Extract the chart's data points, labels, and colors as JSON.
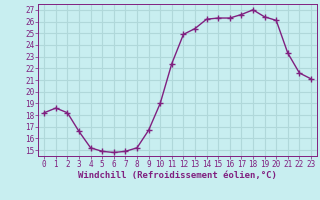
{
  "x": [
    0,
    1,
    2,
    3,
    4,
    5,
    6,
    7,
    8,
    9,
    10,
    11,
    12,
    13,
    14,
    15,
    16,
    17,
    18,
    19,
    20,
    21,
    22,
    23
  ],
  "y": [
    18.2,
    18.6,
    18.2,
    16.6,
    15.2,
    14.9,
    14.8,
    14.9,
    15.2,
    16.7,
    19.0,
    22.4,
    24.9,
    25.4,
    26.2,
    26.3,
    26.3,
    26.6,
    27.0,
    26.4,
    26.1,
    23.3,
    21.6,
    21.1
  ],
  "line_color": "#802080",
  "marker": "+",
  "marker_size": 4,
  "bg_color": "#c8eef0",
  "grid_color": "#b0d8da",
  "xlabel": "Windchill (Refroidissement éolien,°C)",
  "xlim": [
    -0.5,
    23.5
  ],
  "ylim": [
    14.5,
    27.5
  ],
  "yticks": [
    15,
    16,
    17,
    18,
    19,
    20,
    21,
    22,
    23,
    24,
    25,
    26,
    27
  ],
  "xticks": [
    0,
    1,
    2,
    3,
    4,
    5,
    6,
    7,
    8,
    9,
    10,
    11,
    12,
    13,
    14,
    15,
    16,
    17,
    18,
    19,
    20,
    21,
    22,
    23
  ],
  "tick_color": "#802080",
  "label_fontsize": 6.5,
  "tick_fontsize": 5.5,
  "line_width": 1.0
}
